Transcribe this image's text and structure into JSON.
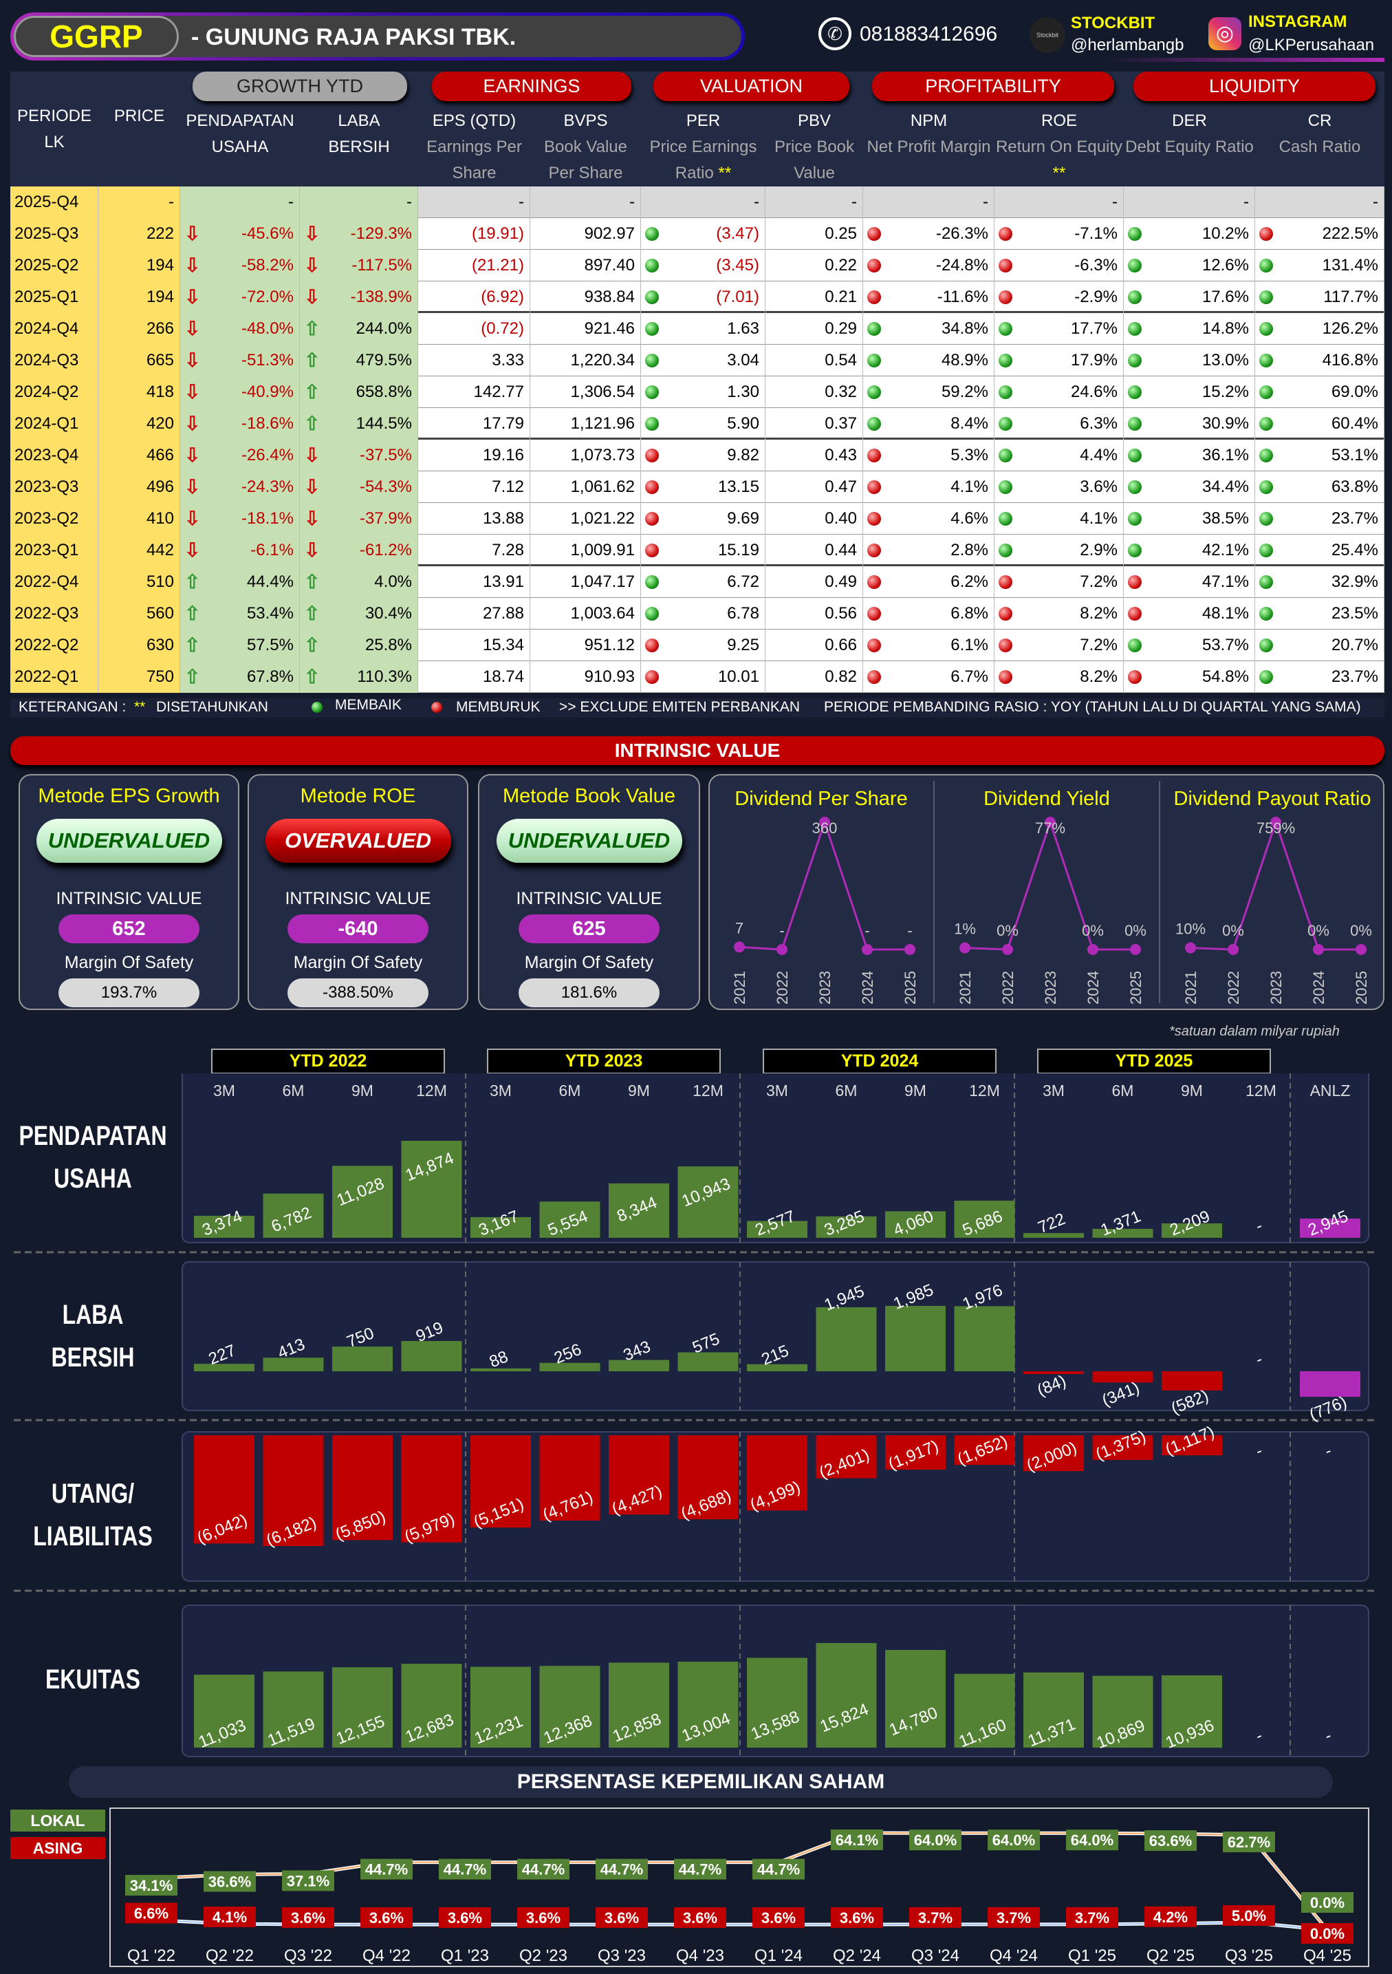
{
  "header": {
    "ticker": "GGRP",
    "company": "- GUNUNG RAJA PAKSI TBK.",
    "phone": "081883412696",
    "stockbit_label": "STOCKBIT",
    "stockbit_handle": "@herlambangb",
    "stockbit_logo": "Stockbit",
    "instagram_label": "INSTAGRAM",
    "instagram_handle": "@LKPerusahaan"
  },
  "groups": {
    "growth": "GROWTH YTD",
    "earnings": "EARNINGS",
    "valuation": "VALUATION",
    "profitability": "PROFITABILITY",
    "liquidity": "LIQUIDITY"
  },
  "columns": {
    "periode": "PERIODE LK",
    "price": "PRICE",
    "pendapatan": "PENDAPATAN",
    "pendapatan2": "USAHA",
    "laba": "LABA",
    "laba2": "BERSIH",
    "eps": "EPS (QTD)",
    "eps_sub": "Earnings Per Share",
    "bvps": "BVPS",
    "bvps_sub": "Book Value Per Share",
    "per": "PER",
    "per_sub": "Price Earnings Ratio",
    "pbv": "PBV",
    "pbv_sub": "Price Book Value",
    "npm": "NPM",
    "npm_sub": "Net Profit Margin",
    "roe": "ROE",
    "roe_sub": "Return On Equity",
    "der": "DER",
    "der_sub": "Debt Equity Ratio",
    "cr": "CR",
    "cr_sub": "Cash Ratio",
    "stars": "**"
  },
  "rows": [
    [
      "2025-Q4",
      "-",
      null,
      "-",
      null,
      "-",
      "-",
      "-",
      null,
      "-",
      "-",
      null,
      "-",
      null,
      "-",
      null,
      "-",
      null,
      "-"
    ],
    [
      "2025-Q3",
      "222",
      "d",
      "-45.6%",
      "d",
      "-129.3%",
      "(19.91)",
      "902.97",
      "g",
      "(3.47)",
      "0.25",
      "r",
      "-26.3%",
      "r",
      "-7.1%",
      "g",
      "10.2%",
      "r",
      "222.5%"
    ],
    [
      "2025-Q2",
      "194",
      "d",
      "-58.2%",
      "d",
      "-117.5%",
      "(21.21)",
      "897.40",
      "g",
      "(3.45)",
      "0.22",
      "r",
      "-24.8%",
      "r",
      "-6.3%",
      "g",
      "12.6%",
      "g",
      "131.4%"
    ],
    [
      "2025-Q1",
      "194",
      "d",
      "-72.0%",
      "d",
      "-138.9%",
      "(6.92)",
      "938.84",
      "g",
      "(7.01)",
      "0.21",
      "r",
      "-11.6%",
      "r",
      "-2.9%",
      "g",
      "17.6%",
      "g",
      "117.7%"
    ],
    [
      "2024-Q4",
      "266",
      "d",
      "-48.0%",
      "u",
      "244.0%",
      "(0.72)",
      "921.46",
      "g",
      "1.63",
      "0.29",
      "g",
      "34.8%",
      "g",
      "17.7%",
      "g",
      "14.8%",
      "g",
      "126.2%"
    ],
    [
      "2024-Q3",
      "665",
      "d",
      "-51.3%",
      "u",
      "479.5%",
      "3.33",
      "1,220.34",
      "g",
      "3.04",
      "0.54",
      "g",
      "48.9%",
      "g",
      "17.9%",
      "g",
      "13.0%",
      "g",
      "416.8%"
    ],
    [
      "2024-Q2",
      "418",
      "d",
      "-40.9%",
      "u",
      "658.8%",
      "142.77",
      "1,306.54",
      "g",
      "1.30",
      "0.32",
      "g",
      "59.2%",
      "g",
      "24.6%",
      "g",
      "15.2%",
      "g",
      "69.0%"
    ],
    [
      "2024-Q1",
      "420",
      "d",
      "-18.6%",
      "u",
      "144.5%",
      "17.79",
      "1,121.96",
      "g",
      "5.90",
      "0.37",
      "g",
      "8.4%",
      "g",
      "6.3%",
      "g",
      "30.9%",
      "g",
      "60.4%"
    ],
    [
      "2023-Q4",
      "466",
      "d",
      "-26.4%",
      "d",
      "-37.5%",
      "19.16",
      "1,073.73",
      "r",
      "9.82",
      "0.43",
      "r",
      "5.3%",
      "g",
      "4.4%",
      "g",
      "36.1%",
      "g",
      "53.1%"
    ],
    [
      "2023-Q3",
      "496",
      "d",
      "-24.3%",
      "d",
      "-54.3%",
      "7.12",
      "1,061.62",
      "r",
      "13.15",
      "0.47",
      "r",
      "4.1%",
      "g",
      "3.6%",
      "g",
      "34.4%",
      "g",
      "63.8%"
    ],
    [
      "2023-Q2",
      "410",
      "d",
      "-18.1%",
      "d",
      "-37.9%",
      "13.88",
      "1,021.22",
      "r",
      "9.69",
      "0.40",
      "r",
      "4.6%",
      "g",
      "4.1%",
      "g",
      "38.5%",
      "g",
      "23.7%"
    ],
    [
      "2023-Q1",
      "442",
      "d",
      "-6.1%",
      "d",
      "-61.2%",
      "7.28",
      "1,009.91",
      "r",
      "15.19",
      "0.44",
      "r",
      "2.8%",
      "g",
      "2.9%",
      "g",
      "42.1%",
      "g",
      "25.4%"
    ],
    [
      "2022-Q4",
      "510",
      "u",
      "44.4%",
      "u",
      "4.0%",
      "13.91",
      "1,047.17",
      "g",
      "6.72",
      "0.49",
      "r",
      "6.2%",
      "r",
      "7.2%",
      "r",
      "47.1%",
      "g",
      "32.9%"
    ],
    [
      "2022-Q3",
      "560",
      "u",
      "53.4%",
      "u",
      "30.4%",
      "27.88",
      "1,003.64",
      "g",
      "6.78",
      "0.56",
      "r",
      "6.8%",
      "r",
      "8.2%",
      "r",
      "48.1%",
      "g",
      "23.5%"
    ],
    [
      "2022-Q2",
      "630",
      "u",
      "57.5%",
      "u",
      "25.8%",
      "15.34",
      "951.12",
      "r",
      "9.25",
      "0.66",
      "r",
      "6.1%",
      "r",
      "7.2%",
      "g",
      "53.7%",
      "g",
      "20.7%"
    ],
    [
      "2022-Q1",
      "750",
      "u",
      "67.8%",
      "u",
      "110.3%",
      "18.74",
      "910.93",
      "r",
      "10.01",
      "0.82",
      "r",
      "6.7%",
      "r",
      "8.2%",
      "r",
      "54.8%",
      "g",
      "23.7%"
    ]
  ],
  "legend": {
    "keterangan": "KETERANGAN :",
    "stars": "**",
    "disetahunkan": "DISETAHUNKAN",
    "membaik": "MEMBAIK",
    "memburuk": "MEMBURUK",
    "exclude": ">> EXCLUDE EMITEN PERBANKAN",
    "pembanding": "PERIODE PEMBANDING RASIO : YOY (TAHUN LALU DI QUARTAL YANG SAMA)"
  },
  "intrinsic": {
    "title": "INTRINSIC VALUE",
    "cards": [
      {
        "title": "Metode EPS Growth",
        "verdict": "UNDERVALUED",
        "iv_label": "INTRINSIC VALUE",
        "iv": "652",
        "mos_label": "Margin Of Safety",
        "mos": "193.7%"
      },
      {
        "title": "Metode ROE",
        "verdict": "OVERVALUED",
        "iv_label": "INTRINSIC VALUE",
        "iv": "-640",
        "mos_label": "Margin Of Safety",
        "mos": "-388.50%"
      },
      {
        "title": "Metode Book Value",
        "verdict": "UNDERVALUED",
        "iv_label": "INTRINSIC VALUE",
        "iv": "625",
        "mos_label": "Margin Of Safety",
        "mos": "181.6%"
      }
    ]
  },
  "dividend": {
    "years": [
      "2021",
      "2022",
      "2023",
      "2024",
      "2025"
    ],
    "panels": [
      {
        "title": "Dividend Per Share",
        "values": [
          7,
          0,
          360,
          0,
          0
        ],
        "labels": [
          "7",
          "-",
          "360",
          "-",
          "-"
        ]
      },
      {
        "title": "Dividend Yield",
        "values": [
          1,
          0,
          77,
          0,
          0
        ],
        "labels": [
          "1%",
          "0%",
          "77%",
          "0%",
          "0%"
        ]
      },
      {
        "title": "Dividend Payout Ratio",
        "values": [
          10,
          0,
          759,
          0,
          0
        ],
        "labels": [
          "10%",
          "0%",
          "759%",
          "0%",
          "0%"
        ]
      }
    ]
  },
  "colors": {
    "bar_green": "#548235",
    "bar_red": "#c00000",
    "anlz": "#b02ab8",
    "lokal": "#548235",
    "asing": "#c00000"
  },
  "bars": {
    "note": "*satuan dalam milyar rupiah",
    "groups": [
      "YTD 2022",
      "YTD 2023",
      "YTD 2024",
      "YTD 2025"
    ],
    "cols": [
      "3M",
      "6M",
      "9M",
      "12M",
      "3M",
      "6M",
      "9M",
      "12M",
      "3M",
      "6M",
      "9M",
      "12M",
      "3M",
      "6M",
      "9M",
      "12M",
      "ANLZ"
    ],
    "sections": [
      {
        "label": [
          "PENDAPATAN",
          "USAHA"
        ],
        "values": [
          3374,
          6782,
          11028,
          14874,
          3167,
          5554,
          8344,
          10943,
          2577,
          3285,
          4060,
          5686,
          722,
          1371,
          2209,
          null,
          2945
        ]
      },
      {
        "label": [
          "LABA",
          "BERSIH"
        ],
        "values": [
          227,
          413,
          750,
          919,
          88,
          256,
          343,
          575,
          215,
          1945,
          1985,
          1976,
          -84,
          -341,
          -582,
          null,
          -776
        ]
      },
      {
        "label": [
          "UTANG/",
          "LIABILITAS"
        ],
        "values": [
          -6042,
          -6182,
          -5850,
          -5979,
          -5151,
          -4761,
          -4427,
          -4688,
          -4199,
          -2401,
          -1917,
          -1652,
          -2000,
          -1375,
          -1117,
          null,
          null
        ]
      },
      {
        "label": [
          "EKUITAS"
        ],
        "values": [
          11033,
          11519,
          12155,
          12683,
          12231,
          12368,
          12858,
          13004,
          13588,
          15824,
          14780,
          11160,
          11371,
          10869,
          10936,
          null,
          null
        ]
      }
    ]
  },
  "ownership": {
    "title": "PERSENTASE KEPEMILIKAN SAHAM",
    "lokal_label": "LOKAL",
    "asing_label": "ASING",
    "quarters": [
      "Q1 '22",
      "Q2 '22",
      "Q3 '22",
      "Q4 '22",
      "Q1 '23",
      "Q2 '23",
      "Q3 '23",
      "Q4 '23",
      "Q1 '24",
      "Q2 '24",
      "Q3 '24",
      "Q4 '24",
      "Q1 '25",
      "Q2 '25",
      "Q3 '25",
      "Q4 '25"
    ],
    "lokal": [
      34.1,
      36.6,
      37.1,
      44.7,
      44.7,
      44.7,
      44.7,
      44.7,
      44.7,
      64.1,
      64.0,
      64.0,
      64.0,
      63.6,
      62.7,
      0.0
    ],
    "asing": [
      6.6,
      4.1,
      3.6,
      3.6,
      3.6,
      3.6,
      3.6,
      3.6,
      3.6,
      3.6,
      3.7,
      3.7,
      3.7,
      4.2,
      5.0,
      0.0
    ]
  }
}
